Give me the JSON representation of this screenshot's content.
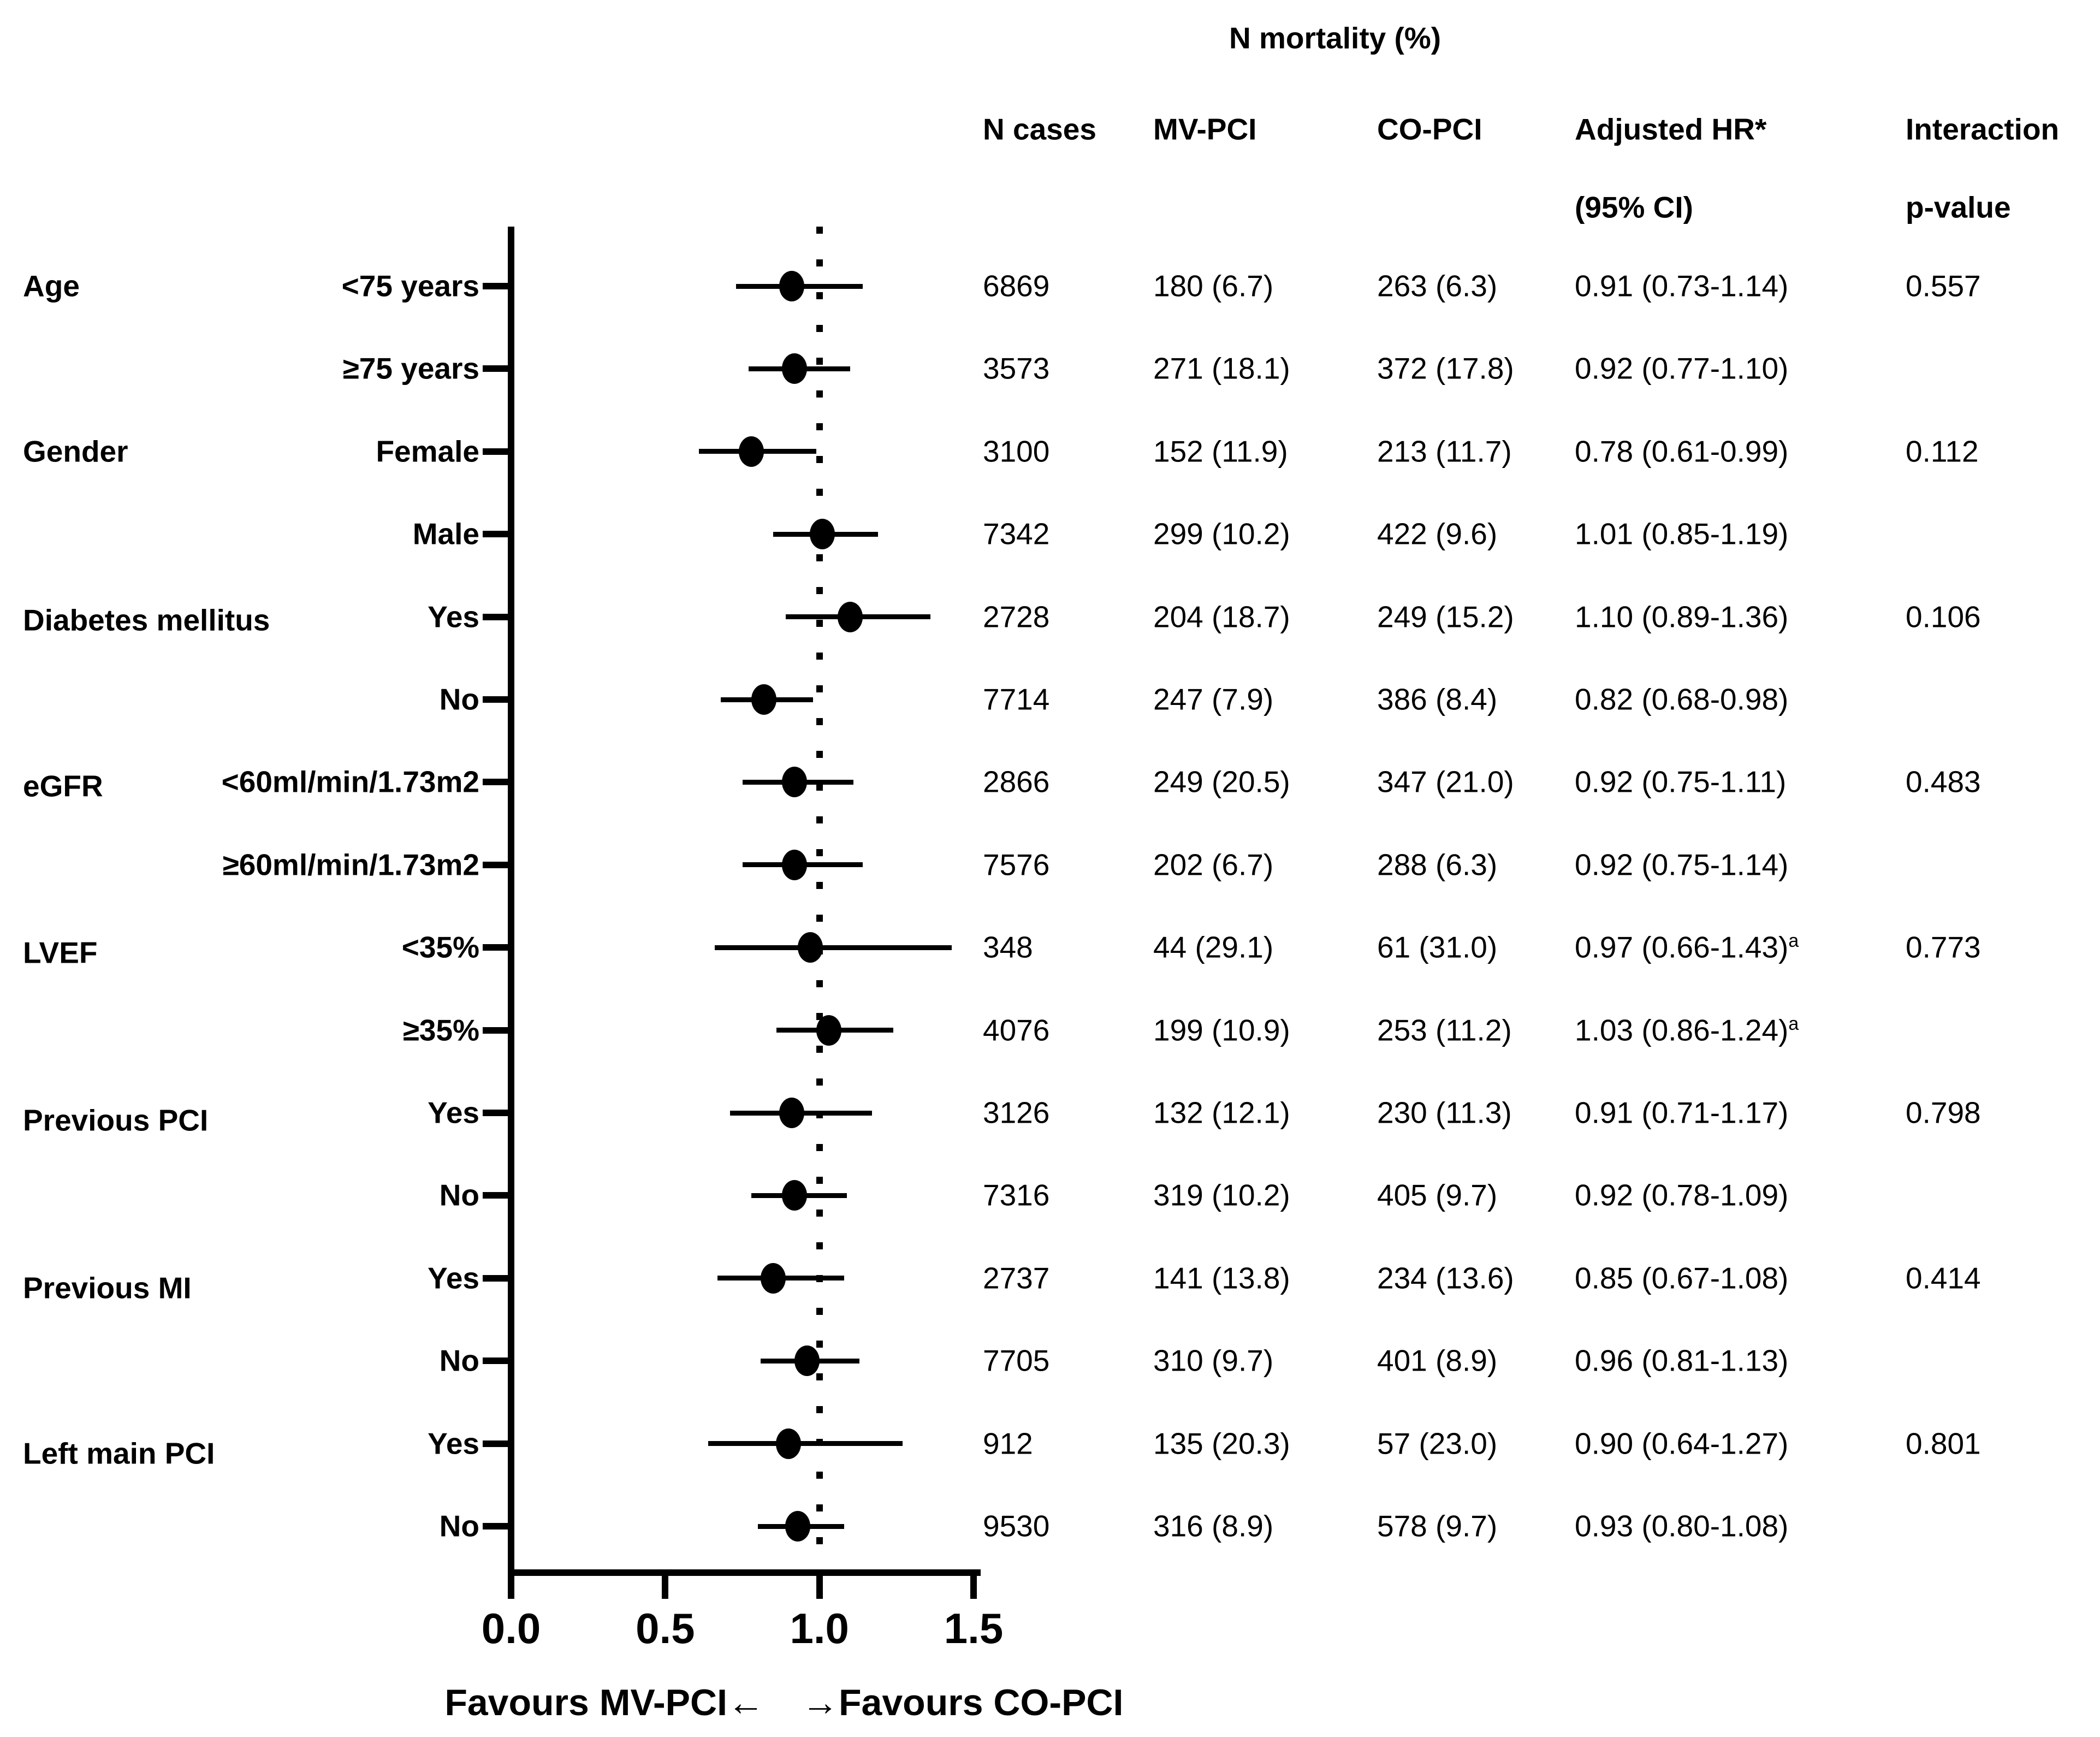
{
  "colors": {
    "foreground": "#000000",
    "background": "#ffffff"
  },
  "chart_data": {
    "type": "forest",
    "title": "N mortality (%)",
    "columns": {
      "n_cases": "N cases",
      "mv_pci": "MV-PCI",
      "co_pci": "CO-PCI",
      "hr_line1": "Adjusted HR*",
      "hr_line2": "(95% CI)",
      "p_line1": "Interaction",
      "p_line2": "p-value"
    },
    "x_axis": {
      "xlim": [
        0,
        1.5
      ],
      "tick_labels": [
        "0.0",
        "0.5",
        "1.0",
        "1.5"
      ],
      "tick_values": [
        0,
        0.5,
        1.0,
        1.5
      ],
      "reference_line": 1.0,
      "favours_left": "Favours MV-PCI←",
      "favours_right": "→Favours CO-PCI"
    },
    "rows": [
      {
        "group": "Age",
        "category": "<75 years",
        "n_cases": "6869",
        "mv_pci": "180 (6.7)",
        "co_pci": "263 (6.3)",
        "hr_text": "0.91 (0.73-1.14)",
        "hr_sup": "",
        "p_value": "0.557",
        "hr": 0.91,
        "ci_low": 0.73,
        "ci_high": 1.14
      },
      {
        "group": "",
        "category": "≥75 years",
        "n_cases": "3573",
        "mv_pci": "271 (18.1)",
        "co_pci": "372 (17.8)",
        "hr_text": "0.92 (0.77-1.10)",
        "hr_sup": "",
        "p_value": "",
        "hr": 0.92,
        "ci_low": 0.77,
        "ci_high": 1.1
      },
      {
        "group": "Gender",
        "category": "Female",
        "n_cases": "3100",
        "mv_pci": "152 (11.9)",
        "co_pci": "213 (11.7)",
        "hr_text": "0.78 (0.61-0.99)",
        "hr_sup": "",
        "p_value": "0.112",
        "hr": 0.78,
        "ci_low": 0.61,
        "ci_high": 0.99
      },
      {
        "group": "",
        "category": "Male",
        "n_cases": "7342",
        "mv_pci": "299 (10.2)",
        "co_pci": "422 (9.6)",
        "hr_text": "1.01 (0.85-1.19)",
        "hr_sup": "",
        "p_value": "",
        "hr": 1.01,
        "ci_low": 0.85,
        "ci_high": 1.19
      },
      {
        "group": "Diabetes mellitus",
        "category": "Yes",
        "n_cases": "2728",
        "mv_pci": "204 (18.7)",
        "co_pci": "249 (15.2)",
        "hr_text": "1.10 (0.89-1.36)",
        "hr_sup": "",
        "p_value": "0.106",
        "hr": 1.1,
        "ci_low": 0.89,
        "ci_high": 1.36
      },
      {
        "group": "",
        "category": "No",
        "n_cases": "7714",
        "mv_pci": "247 (7.9)",
        "co_pci": "386 (8.4)",
        "hr_text": "0.82 (0.68-0.98)",
        "hr_sup": "",
        "p_value": "",
        "hr": 0.82,
        "ci_low": 0.68,
        "ci_high": 0.98
      },
      {
        "group": "eGFR",
        "category": "<60ml/min/1.73m2",
        "n_cases": "2866",
        "mv_pci": "249 (20.5)",
        "co_pci": "347 (21.0)",
        "hr_text": "0.92 (0.75-1.11)",
        "hr_sup": "",
        "p_value": "0.483",
        "hr": 0.92,
        "ci_low": 0.75,
        "ci_high": 1.11
      },
      {
        "group": "",
        "category": "≥60ml/min/1.73m2",
        "n_cases": "7576",
        "mv_pci": "202 (6.7)",
        "co_pci": "288 (6.3)",
        "hr_text": "0.92 (0.75-1.14)",
        "hr_sup": "",
        "p_value": "",
        "hr": 0.92,
        "ci_low": 0.75,
        "ci_high": 1.14
      },
      {
        "group": "LVEF",
        "category": "<35%",
        "n_cases": "348",
        "mv_pci": "44 (29.1)",
        "co_pci": "61 (31.0)",
        "hr_text": "0.97 (0.66-1.43)",
        "hr_sup": "a",
        "p_value": "0.773",
        "hr": 0.97,
        "ci_low": 0.66,
        "ci_high": 1.43
      },
      {
        "group": "",
        "category": "≥35%",
        "n_cases": "4076",
        "mv_pci": "199 (10.9)",
        "co_pci": "253 (11.2)",
        "hr_text": "1.03 (0.86-1.24)",
        "hr_sup": "a",
        "p_value": "",
        "hr": 1.03,
        "ci_low": 0.86,
        "ci_high": 1.24
      },
      {
        "group": "Previous PCI",
        "category": "Yes",
        "n_cases": "3126",
        "mv_pci": "132 (12.1)",
        "co_pci": "230 (11.3)",
        "hr_text": "0.91 (0.71-1.17)",
        "hr_sup": "",
        "p_value": "0.798",
        "hr": 0.91,
        "ci_low": 0.71,
        "ci_high": 1.17
      },
      {
        "group": "",
        "category": "No",
        "n_cases": "7316",
        "mv_pci": "319 (10.2)",
        "co_pci": "405 (9.7)",
        "hr_text": "0.92 (0.78-1.09)",
        "hr_sup": "",
        "p_value": "",
        "hr": 0.92,
        "ci_low": 0.78,
        "ci_high": 1.09
      },
      {
        "group": "Previous MI",
        "category": "Yes",
        "n_cases": "2737",
        "mv_pci": "141 (13.8)",
        "co_pci": "234 (13.6)",
        "hr_text": "0.85 (0.67-1.08)",
        "hr_sup": "",
        "p_value": "0.414",
        "hr": 0.85,
        "ci_low": 0.67,
        "ci_high": 1.08
      },
      {
        "group": "",
        "category": "No",
        "n_cases": "7705",
        "mv_pci": "310 (9.7)",
        "co_pci": "401 (8.9)",
        "hr_text": "0.96 (0.81-1.13)",
        "hr_sup": "",
        "p_value": "",
        "hr": 0.96,
        "ci_low": 0.81,
        "ci_high": 1.13
      },
      {
        "group": "Left main PCI",
        "category": "Yes",
        "n_cases": "912",
        "mv_pci": "135 (20.3)",
        "co_pci": "57 (23.0)",
        "hr_text": "0.90 (0.64-1.27)",
        "hr_sup": "",
        "p_value": "0.801",
        "hr": 0.9,
        "ci_low": 0.64,
        "ci_high": 1.27
      },
      {
        "group": "",
        "category": "No",
        "n_cases": "9530",
        "mv_pci": "316 (8.9)",
        "co_pci": "578 (9.7)",
        "hr_text": "0.93 (0.80-1.08)",
        "hr_sup": "",
        "p_value": "",
        "hr": 0.93,
        "ci_low": 0.8,
        "ci_high": 1.08
      }
    ]
  }
}
